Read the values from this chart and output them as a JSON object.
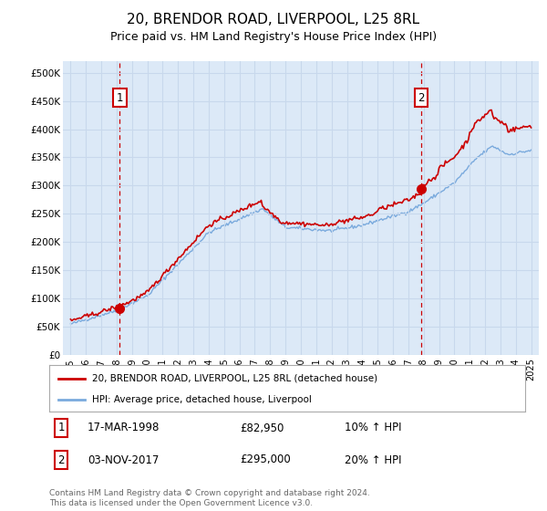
{
  "title": "20, BRENDOR ROAD, LIVERPOOL, L25 8RL",
  "subtitle": "Price paid vs. HM Land Registry's House Price Index (HPI)",
  "title_fontsize": 11,
  "subtitle_fontsize": 9,
  "background_color": "#ffffff",
  "plot_bg_color": "#dce9f7",
  "grid_color": "#c8d8ec",
  "red_line_color": "#cc0000",
  "blue_line_color": "#7aaadd",
  "sale1_year": 1998.21,
  "sale1_price": 82950,
  "sale2_year": 2017.84,
  "sale2_price": 295000,
  "ylim": [
    0,
    520000
  ],
  "xlim_start": 1994.5,
  "xlim_end": 2025.5,
  "ytick_labels": [
    "£0",
    "£50K",
    "£100K",
    "£150K",
    "£200K",
    "£250K",
    "£300K",
    "£350K",
    "£400K",
    "£450K",
    "£500K"
  ],
  "ytick_values": [
    0,
    50000,
    100000,
    150000,
    200000,
    250000,
    300000,
    350000,
    400000,
    450000,
    500000
  ],
  "xtick_years": [
    1995,
    1996,
    1997,
    1998,
    1999,
    2000,
    2001,
    2002,
    2003,
    2004,
    2005,
    2006,
    2007,
    2008,
    2009,
    2010,
    2011,
    2012,
    2013,
    2014,
    2015,
    2016,
    2017,
    2018,
    2019,
    2020,
    2021,
    2022,
    2023,
    2024,
    2025
  ],
  "legend_red": "20, BRENDOR ROAD, LIVERPOOL, L25 8RL (detached house)",
  "legend_blue": "HPI: Average price, detached house, Liverpool",
  "footer": "Contains HM Land Registry data © Crown copyright and database right 2024.\nThis data is licensed under the Open Government Licence v3.0.",
  "annotation1_date": "17-MAR-1998",
  "annotation1_price": "£82,950",
  "annotation1_hpi": "10% ↑ HPI",
  "annotation2_date": "03-NOV-2017",
  "annotation2_price": "£295,000",
  "annotation2_hpi": "20% ↑ HPI"
}
